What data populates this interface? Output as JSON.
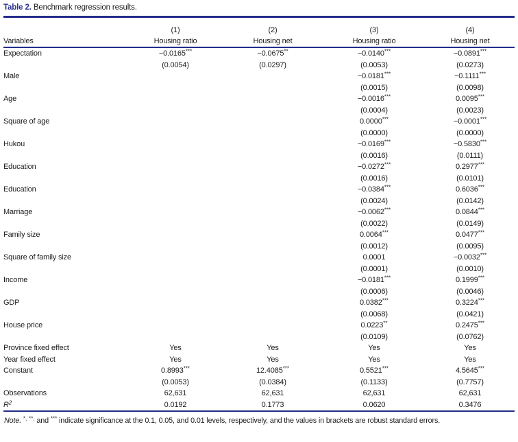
{
  "caption": {
    "label": "Table 2.",
    "text": "Benchmark regression results."
  },
  "colors": {
    "rule_navy": "#252c8c",
    "caption_label_blue": "#2c3291",
    "text": "#1c1c1c"
  },
  "table": {
    "variables_header": "Variables",
    "column_numbers": [
      "(1)",
      "(2)",
      "(3)",
      "(4)"
    ],
    "column_names": [
      "Housing ratio",
      "Housing net",
      "Housing ratio",
      "Housing net"
    ],
    "rows": [
      {
        "label": "Expectation",
        "cells": [
          "−0.0165***",
          "−0.0675**",
          "−0.0140***",
          "−0.0891***"
        ]
      },
      {
        "label": "",
        "cells": [
          "(0.0054)",
          "(0.0297)",
          "(0.0053)",
          "(0.0273)"
        ]
      },
      {
        "label": "Male",
        "cells": [
          "",
          "",
          "−0.0181***",
          "−0.1111***"
        ]
      },
      {
        "label": "",
        "cells": [
          "",
          "",
          "(0.0015)",
          "(0.0098)"
        ]
      },
      {
        "label": "Age",
        "cells": [
          "",
          "",
          "−0.0016***",
          "0.0095***"
        ]
      },
      {
        "label": "",
        "cells": [
          "",
          "",
          "(0.0004)",
          "(0.0023)"
        ]
      },
      {
        "label": "Square of age",
        "cells": [
          "",
          "",
          "0.0000***",
          "−0.0001***"
        ]
      },
      {
        "label": "",
        "cells": [
          "",
          "",
          "(0.0000)",
          "(0.0000)"
        ]
      },
      {
        "label": "Hukou",
        "cells": [
          "",
          "",
          "−0.0169***",
          "−0.5830***"
        ]
      },
      {
        "label": "",
        "cells": [
          "",
          "",
          "(0.0016)",
          "(0.0111)"
        ]
      },
      {
        "label": "Education",
        "cells": [
          "",
          "",
          "−0.0272***",
          "0.2977***"
        ]
      },
      {
        "label": "",
        "cells": [
          "",
          "",
          "(0.0016)",
          "(0.0101)"
        ]
      },
      {
        "label": "Education",
        "cells": [
          "",
          "",
          "−0.0384***",
          "0.6036***"
        ]
      },
      {
        "label": "",
        "cells": [
          "",
          "",
          "(0.0024)",
          "(0.0142)"
        ]
      },
      {
        "label": "Marriage",
        "cells": [
          "",
          "",
          "−0.0062***",
          "0.0844***"
        ]
      },
      {
        "label": "",
        "cells": [
          "",
          "",
          "(0.0022)",
          "(0.0149)"
        ]
      },
      {
        "label": "Family size",
        "cells": [
          "",
          "",
          "0.0064***",
          "0.0477***"
        ]
      },
      {
        "label": "",
        "cells": [
          "",
          "",
          "(0.0012)",
          "(0.0095)"
        ]
      },
      {
        "label": "Square of family size",
        "cells": [
          "",
          "",
          "0.0001",
          "−0.0032***"
        ]
      },
      {
        "label": "",
        "cells": [
          "",
          "",
          "(0.0001)",
          "(0.0010)"
        ]
      },
      {
        "label": "Income",
        "cells": [
          "",
          "",
          "−0.0181***",
          "0.1999***"
        ]
      },
      {
        "label": "",
        "cells": [
          "",
          "",
          "(0.0006)",
          "(0.0046)"
        ]
      },
      {
        "label": "GDP",
        "cells": [
          "",
          "",
          "0.0382***",
          "0.3224***"
        ]
      },
      {
        "label": "",
        "cells": [
          "",
          "",
          "(0.0068)",
          "(0.0421)"
        ]
      },
      {
        "label": "House price",
        "cells": [
          "",
          "",
          "0.0223**",
          "0.2475***"
        ]
      },
      {
        "label": "",
        "cells": [
          "",
          "",
          "(0.0109)",
          "(0.0762)"
        ]
      },
      {
        "label": "Province fixed effect",
        "cells": [
          "Yes",
          "Yes",
          "Yes",
          "Yes"
        ]
      },
      {
        "label": "Year fixed effect",
        "cells": [
          "Yes",
          "Yes",
          "Yes",
          "Yes"
        ]
      },
      {
        "label": "Constant",
        "cells": [
          "0.8993***",
          "12.4085***",
          "0.5521***",
          "4.5645***"
        ]
      },
      {
        "label": "",
        "cells": [
          "(0.0053)",
          "(0.0384)",
          "(0.1133)",
          "(0.7757)"
        ]
      },
      {
        "label": "Observations",
        "cells": [
          "62,631",
          "62,631",
          "62,631",
          "62,631"
        ]
      },
      {
        "label": "R",
        "label_sup": "2",
        "label_italic": true,
        "cells": [
          "0.0192",
          "0.1773",
          "0.0620",
          "0.3476"
        ]
      }
    ]
  },
  "note": {
    "prefix": "Note.",
    "text": " *, **, and *** indicate significance at the 0.1, 0.05, and 0.01 levels, respectively, and the values in brackets are robust standard errors."
  }
}
